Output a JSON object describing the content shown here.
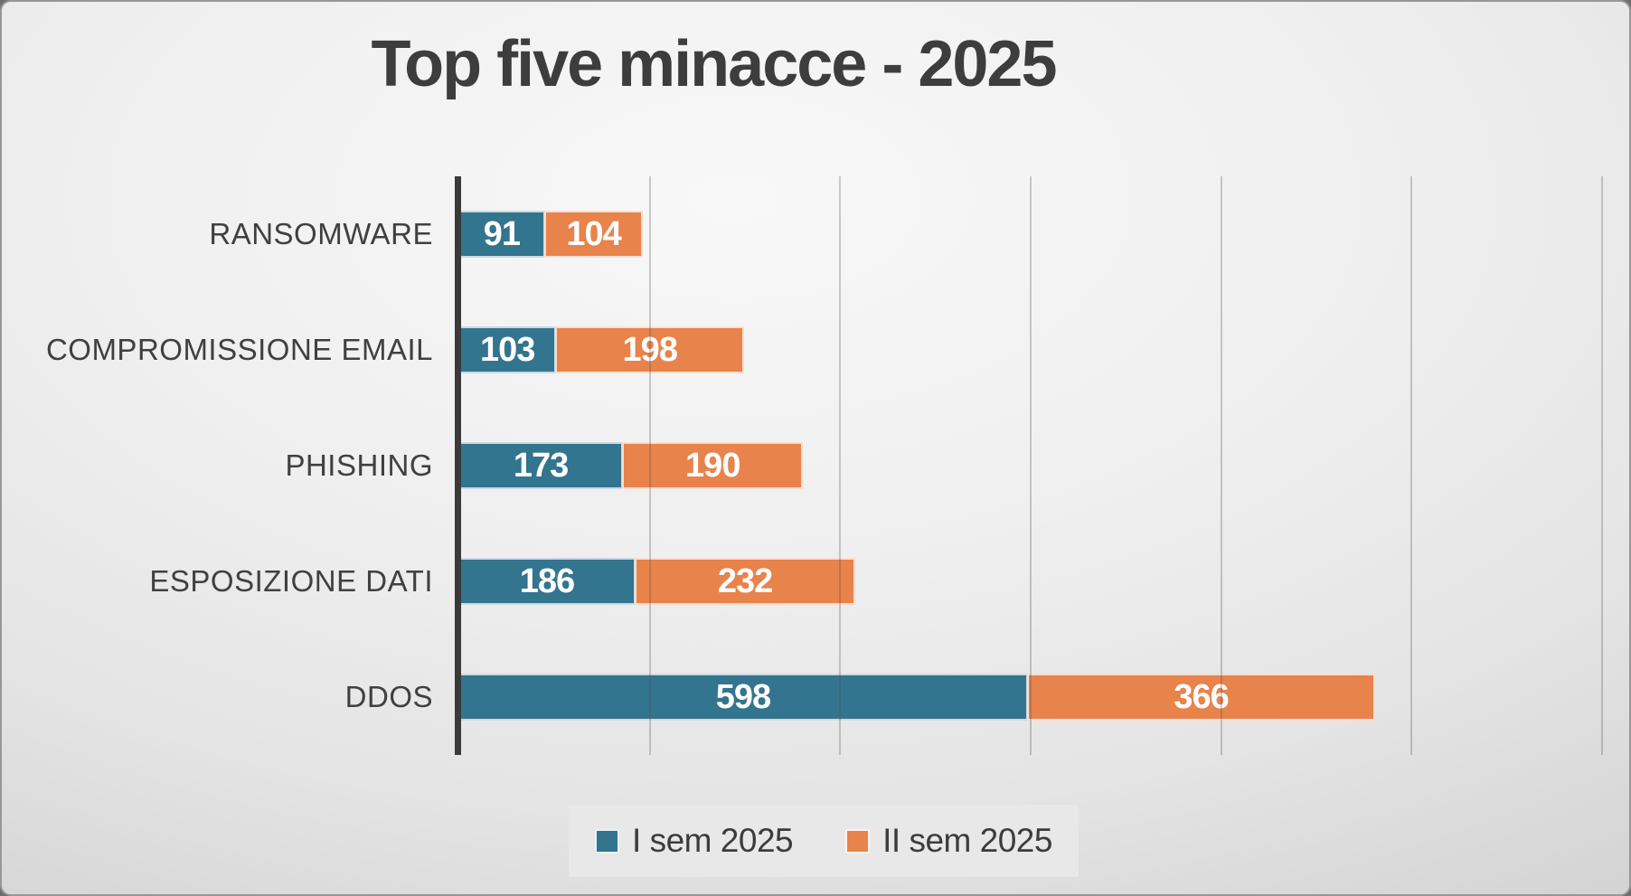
{
  "chart_data": {
    "type": "bar",
    "orientation": "horizontal",
    "stacked": true,
    "title": "Top five minacce - 2025",
    "categories": [
      "RANSOMWARE",
      "COMPROMISSIONE EMAIL",
      "PHISHING",
      "ESPOSIZIONE DATI",
      "DDOS"
    ],
    "series": [
      {
        "name": "I sem 2025",
        "color": "#33748F",
        "values": [
          91,
          103,
          173,
          186,
          598
        ]
      },
      {
        "name": "II sem 2025",
        "color": "#E8834B",
        "values": [
          104,
          198,
          190,
          232,
          366
        ]
      }
    ],
    "xlim": [
      0,
      1220
    ],
    "gridline_interval": 200,
    "grid": true,
    "value_labels": "inside-center",
    "legend_position": "bottom",
    "colors": {
      "title": "#3d3d3d",
      "category_label": "#404040",
      "value_label": "#ffffff",
      "axis": "#3a3a3a",
      "gridline": "#8a8a8a",
      "legend_background": "#e8e8e8",
      "legend_text": "#3c3c3c",
      "slide_background": "#e4e4e4"
    }
  }
}
